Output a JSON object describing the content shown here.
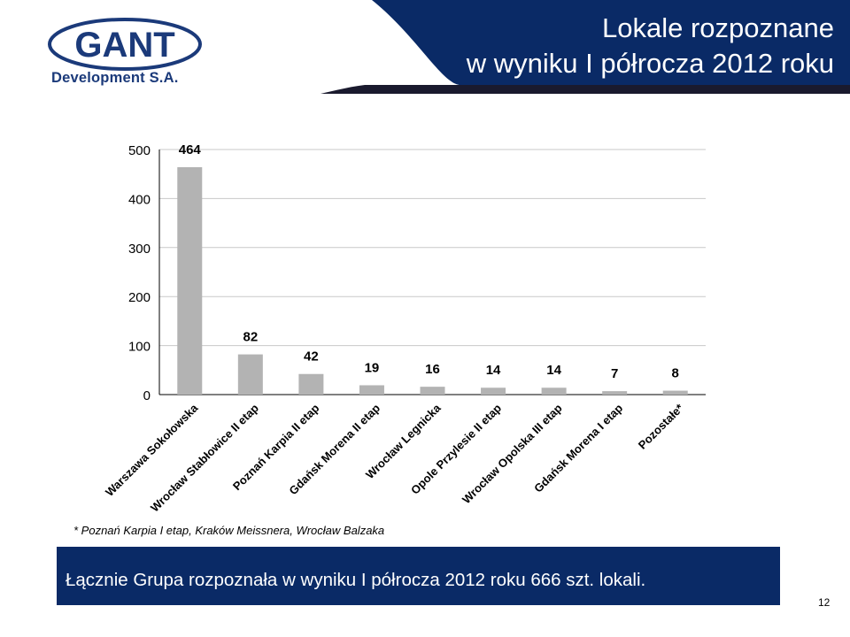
{
  "header": {
    "title_line1": "Lokale rozpoznane",
    "title_line2": "w wyniku I półrocza 2012 roku",
    "logo_text": "GANT",
    "logo_subtext": "Development S.A.",
    "colors": {
      "navy": "#0a2a66",
      "logo_blue": "#1b3a7a"
    }
  },
  "chart_data": {
    "type": "bar",
    "categories": [
      "Warszawa Sokołowska",
      "Wrocław Stabłowice II etap",
      "Poznań Karpia II etap",
      "Gdańsk Morena II etap",
      "Wrocław Legnicka",
      "Opole Przylesie II etap",
      "Wrocław Opolska III etap",
      "Gdańsk Morena I etap",
      "Pozostałe*"
    ],
    "values": [
      464,
      82,
      42,
      19,
      16,
      14,
      14,
      7,
      8
    ],
    "yticks": [
      0,
      100,
      200,
      300,
      400,
      500
    ],
    "ylim": [
      0,
      500
    ],
    "bar_color": "#b3b3b3",
    "grid": true
  },
  "footnote": "* Poznań Karpia I etap, Kraków Meissnera, Wrocław Balzaka",
  "summary": "Łącznie Grupa rozpoznała w wyniku I półrocza 2012 roku 666 szt. lokali.",
  "page_number": "12"
}
